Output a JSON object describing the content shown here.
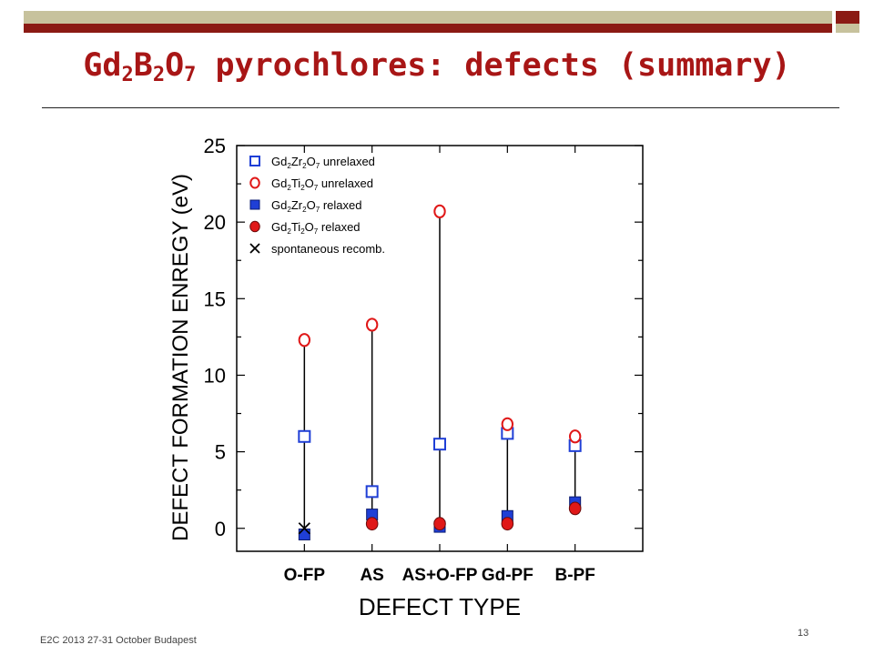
{
  "slide": {
    "title_parts": [
      "Gd",
      "2",
      "B",
      "2",
      "O",
      "7",
      " pyrochlores: defects (summary)"
    ],
    "footer_left": "E2C 2013 27-31 October Budapest",
    "page_number": "13",
    "colors": {
      "title": "#a81616",
      "bar_olive": "#c7c29d",
      "bar_red": "#8b1a14"
    }
  },
  "chart_data": {
    "type": "scatter",
    "xlabel": "DEFECT TYPE",
    "ylabel": "DEFECT FORMATION ENREGY (eV)",
    "categories": [
      "O-FP",
      "AS",
      "AS+O-FP",
      "Gd-PF",
      "B-PF"
    ],
    "ylim": [
      -1.5,
      25
    ],
    "yticks": [
      0,
      5,
      10,
      15,
      20,
      25
    ],
    "grid": false,
    "legend_position": "top-left",
    "series": [
      {
        "name_parts": [
          "Gd",
          "2",
          "Zr",
          "2",
          "O",
          "7",
          " unrelaxed"
        ],
        "marker": "square-open",
        "color": "#1f3fd6",
        "values": [
          6.0,
          2.4,
          5.5,
          6.2,
          5.4
        ]
      },
      {
        "name_parts": [
          "Gd",
          "2",
          "Ti",
          "2",
          "O",
          "7",
          " unrelaxed"
        ],
        "marker": "circle-open",
        "color": "#e01818",
        "values": [
          12.3,
          13.3,
          20.7,
          6.8,
          6.0
        ]
      },
      {
        "name_parts": [
          "Gd",
          "2",
          "Zr",
          "2",
          "O",
          "7",
          " relaxed"
        ],
        "marker": "square-filled",
        "color": "#1f3fd6",
        "values": [
          -0.4,
          0.9,
          0.1,
          0.8,
          1.7
        ]
      },
      {
        "name_parts": [
          "Gd",
          "2",
          "Ti",
          "2",
          "O",
          "7",
          " relaxed"
        ],
        "marker": "circle-filled",
        "color": "#e01818",
        "values": [
          null,
          0.3,
          0.3,
          0.3,
          1.3
        ]
      },
      {
        "name_parts": [
          "spontaneous recomb."
        ],
        "marker": "x",
        "color": "#000000",
        "values": [
          0.0,
          null,
          null,
          null,
          null
        ]
      }
    ]
  }
}
